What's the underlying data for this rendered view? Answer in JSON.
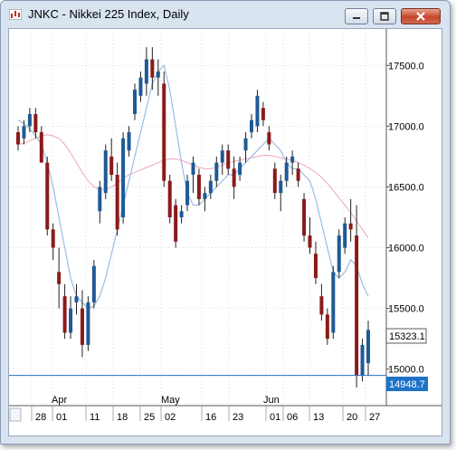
{
  "window": {
    "title": "JNKC - Nikkei 225 Index, Daily"
  },
  "price_labels": {
    "last": "15323.1",
    "line": "14948.7"
  },
  "chart_data": {
    "type": "candlestick",
    "y_ticks": [
      "17500.0",
      "17000.0",
      "16500.0",
      "16000.0",
      "15500.0",
      "15000.0"
    ],
    "x_day_labels": [
      "28",
      "01",
      "11",
      "18",
      "25",
      "02",
      "16",
      "23",
      "01",
      "06",
      "13",
      "20",
      "27"
    ],
    "x_month_labels": [
      "Apr",
      "May",
      "Jun"
    ],
    "ylim": [
      14700,
      17800
    ],
    "candles": [
      [
        16950,
        17000,
        16800,
        16850
      ],
      [
        16900,
        17050,
        16850,
        17000
      ],
      [
        17000,
        17150,
        16950,
        17100
      ],
      [
        17100,
        17150,
        16900,
        16950
      ],
      [
        16950,
        17000,
        16700,
        16700
      ],
      [
        16700,
        16750,
        16100,
        16150
      ],
      [
        16150,
        16200,
        15900,
        16000
      ],
      [
        15800,
        16000,
        15500,
        15700
      ],
      [
        15600,
        15700,
        15250,
        15300
      ],
      [
        15300,
        15600,
        15250,
        15500
      ],
      [
        15550,
        15700,
        15450,
        15600
      ],
      [
        15500,
        15650,
        15100,
        15200
      ],
      [
        15200,
        15600,
        15150,
        15550
      ],
      [
        15550,
        15900,
        15500,
        15850
      ],
      [
        16300,
        16550,
        16200,
        16500
      ],
      [
        16450,
        16850,
        16400,
        16800
      ],
      [
        16750,
        16900,
        16550,
        16600
      ],
      [
        16600,
        16700,
        16100,
        16150
      ],
      [
        16250,
        16950,
        16200,
        16900
      ],
      [
        16800,
        17000,
        16750,
        16950
      ],
      [
        17100,
        17350,
        17050,
        17300
      ],
      [
        17250,
        17450,
        17200,
        17400
      ],
      [
        17350,
        17650,
        17250,
        17550
      ],
      [
        17550,
        17650,
        17300,
        17400
      ],
      [
        17400,
        17550,
        17250,
        17450
      ],
      [
        17350,
        17450,
        16500,
        16550
      ],
      [
        16550,
        16600,
        16200,
        16250
      ],
      [
        16350,
        16400,
        16000,
        16050
      ],
      [
        16250,
        16350,
        16200,
        16300
      ],
      [
        16350,
        16600,
        16300,
        16550
      ],
      [
        16600,
        16750,
        16450,
        16700
      ],
      [
        16600,
        16650,
        16350,
        16400
      ],
      [
        16400,
        16500,
        16300,
        16450
      ],
      [
        16450,
        16600,
        16400,
        16550
      ],
      [
        16550,
        16750,
        16500,
        16700
      ],
      [
        16700,
        16850,
        16600,
        16800
      ],
      [
        16800,
        16850,
        16600,
        16650
      ],
      [
        16650,
        16750,
        16400,
        16500
      ],
      [
        16600,
        16750,
        16550,
        16700
      ],
      [
        16800,
        16950,
        16700,
        16900
      ],
      [
        16950,
        17100,
        16900,
        17050
      ],
      [
        17000,
        17300,
        16950,
        17250
      ],
      [
        17150,
        17200,
        17000,
        17050
      ],
      [
        16950,
        17000,
        16800,
        16850
      ],
      [
        16650,
        16700,
        16400,
        16450
      ],
      [
        16450,
        16600,
        16300,
        16550
      ],
      [
        16550,
        16750,
        16500,
        16700
      ],
      [
        16700,
        16800,
        16600,
        16750
      ],
      [
        16650,
        16700,
        16500,
        16550
      ],
      [
        16400,
        16450,
        16050,
        16100
      ],
      [
        16100,
        16250,
        15950,
        16000
      ],
      [
        15950,
        16050,
        15700,
        15750
      ],
      [
        15600,
        15700,
        15400,
        15450
      ],
      [
        15450,
        15500,
        15200,
        15250
      ],
      [
        15300,
        15850,
        15250,
        15800
      ],
      [
        15800,
        16150,
        15750,
        16100
      ],
      [
        16000,
        16250,
        15950,
        16200
      ],
      [
        16200,
        16400,
        16050,
        16150
      ],
      [
        16100,
        16350,
        14850,
        14950
      ],
      [
        14950,
        15250,
        14900,
        15200
      ],
      [
        15050,
        15400,
        14950,
        15323.1
      ]
    ],
    "ma_blue": [
      17050,
      17020,
      16980,
      16920,
      16850,
      16700,
      16500,
      16250,
      16000,
      15750,
      15600,
      15550,
      15500,
      15520,
      15600,
      15750,
      15950,
      16150,
      16350,
      16550,
      16750,
      16950,
      17150,
      17350,
      17450,
      17500,
      17300,
      17000,
      16700,
      16450,
      16350,
      16350,
      16400,
      16450,
      16500,
      16550,
      16600,
      16600,
      16650,
      16700,
      16750,
      16800,
      16850,
      16900,
      16850,
      16800,
      16700,
      16650,
      16650,
      16600,
      16550,
      16400,
      16200,
      16000,
      15800,
      15750,
      15800,
      15900,
      15850,
      15700,
      15600
    ],
    "ma_pink": [
      16850,
      16860,
      16880,
      16900,
      16920,
      16930,
      16920,
      16900,
      16850,
      16780,
      16700,
      16620,
      16550,
      16500,
      16480,
      16480,
      16500,
      16530,
      16570,
      16600,
      16620,
      16640,
      16660,
      16680,
      16700,
      16720,
      16730,
      16730,
      16720,
      16700,
      16680,
      16660,
      16650,
      16650,
      16660,
      16680,
      16700,
      16710,
      16720,
      16730,
      16740,
      16750,
      16760,
      16760,
      16750,
      16740,
      16730,
      16720,
      16700,
      16680,
      16650,
      16620,
      16580,
      16530,
      16470,
      16410,
      16350,
      16290,
      16220,
      16150,
      16080
    ]
  },
  "colors": {
    "up": "#1f5a96",
    "down": "#8b1a1a",
    "ma_blue": "#9dbbe0",
    "ma_pink": "#eba7b7",
    "price_line": "#1f73c7",
    "grid": "#c8c8c8"
  }
}
